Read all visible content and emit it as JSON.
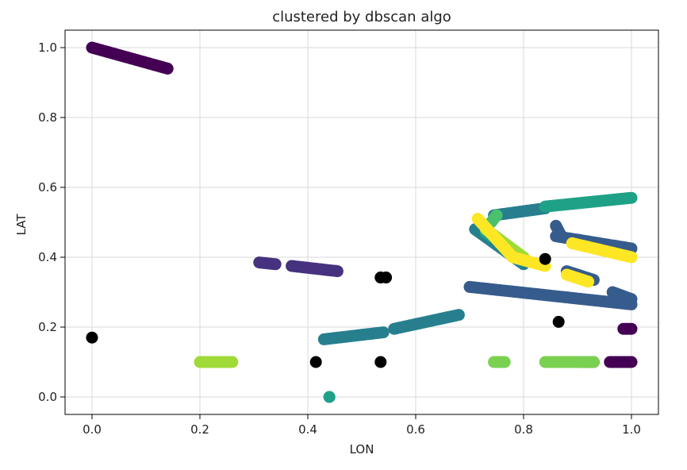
{
  "chart_data": {
    "type": "scatter",
    "title": "clustered by dbscan algo",
    "xlabel": "LON",
    "ylabel": "LAT",
    "xlim": [
      -0.05,
      1.05
    ],
    "ylim": [
      -0.05,
      1.05
    ],
    "xticks": [
      "0.0",
      "0.2",
      "0.4",
      "0.6",
      "0.8",
      "1.0"
    ],
    "yticks": [
      "0.0",
      "0.2",
      "0.4",
      "0.6",
      "0.8",
      "1.0"
    ],
    "grid": true,
    "noise_color": "#000000",
    "series": [
      {
        "color": "#440154",
        "segments": [
          {
            "from": [
              0.0,
              1.0
            ],
            "to": [
              0.14,
              0.94
            ]
          },
          {
            "from": [
              0.905,
              0.1
            ],
            "to": [
              0.93,
              0.1
            ]
          },
          {
            "from": [
              0.96,
              0.1
            ],
            "to": [
              1.0,
              0.1
            ]
          },
          {
            "from": [
              0.985,
              0.195
            ],
            "to": [
              1.0,
              0.195
            ]
          }
        ]
      },
      {
        "color": "#46327e",
        "segments": [
          {
            "from": [
              0.31,
              0.385
            ],
            "to": [
              0.34,
              0.38
            ]
          },
          {
            "from": [
              0.37,
              0.375
            ],
            "to": [
              0.455,
              0.36
            ]
          }
        ]
      },
      {
        "color": "#365c8d",
        "segments": [
          {
            "from": [
              0.7,
              0.315
            ],
            "to": [
              1.0,
              0.265
            ]
          },
          {
            "from": [
              0.86,
              0.49
            ],
            "to": [
              0.87,
              0.46
            ]
          },
          {
            "from": [
              0.86,
              0.46
            ],
            "to": [
              1.0,
              0.425
            ]
          },
          {
            "from": [
              0.88,
              0.36
            ],
            "to": [
              0.93,
              0.335
            ]
          },
          {
            "from": [
              0.965,
              0.3
            ],
            "to": [
              1.0,
              0.28
            ]
          }
        ]
      },
      {
        "color": "#277f8e",
        "segments": [
          {
            "from": [
              0.43,
              0.165
            ],
            "to": [
              0.54,
              0.185
            ]
          },
          {
            "from": [
              0.56,
              0.195
            ],
            "to": [
              0.68,
              0.235
            ]
          },
          {
            "from": [
              0.745,
              0.52
            ],
            "to": [
              0.84,
              0.54
            ]
          },
          {
            "from": [
              0.71,
              0.48
            ],
            "to": [
              0.8,
              0.38
            ]
          }
        ]
      },
      {
        "color": "#1fa187",
        "segments": [
          {
            "from": [
              0.84,
              0.545
            ],
            "to": [
              1.0,
              0.57
            ]
          },
          {
            "from": [
              0.44,
              0.0
            ],
            "to": [
              0.44,
              0.0
            ]
          },
          {
            "from": [
              0.73,
              0.47
            ],
            "to": [
              0.74,
              0.46
            ]
          }
        ]
      },
      {
        "color": "#4ac16d",
        "segments": [
          {
            "from": [
              0.74,
              0.5
            ],
            "to": [
              0.75,
              0.52
            ]
          }
        ]
      },
      {
        "color": "#7ad151",
        "segments": [
          {
            "from": [
              0.745,
              0.1
            ],
            "to": [
              0.765,
              0.1
            ]
          },
          {
            "from": [
              0.84,
              0.1
            ],
            "to": [
              0.93,
              0.1
            ]
          }
        ]
      },
      {
        "color": "#a0da39",
        "segments": [
          {
            "from": [
              0.2,
              0.1
            ],
            "to": [
              0.26,
              0.1
            ]
          },
          {
            "from": [
              0.73,
              0.48
            ],
            "to": [
              0.8,
              0.4
            ]
          }
        ]
      },
      {
        "color": "#fde725",
        "segments": [
          {
            "from": [
              0.715,
              0.51
            ],
            "to": [
              0.78,
              0.4
            ]
          },
          {
            "from": [
              0.78,
              0.4
            ],
            "to": [
              0.84,
              0.375
            ]
          },
          {
            "from": [
              0.89,
              0.44
            ],
            "to": [
              1.0,
              0.4
            ]
          },
          {
            "from": [
              0.88,
              0.35
            ],
            "to": [
              0.92,
              0.33
            ]
          }
        ]
      }
    ],
    "noise_points": [
      [
        0.0,
        0.17
      ],
      [
        0.415,
        0.1
      ],
      [
        0.535,
        0.1
      ],
      [
        0.535,
        0.342
      ],
      [
        0.545,
        0.342
      ],
      [
        0.84,
        0.395
      ],
      [
        0.865,
        0.215
      ]
    ]
  }
}
